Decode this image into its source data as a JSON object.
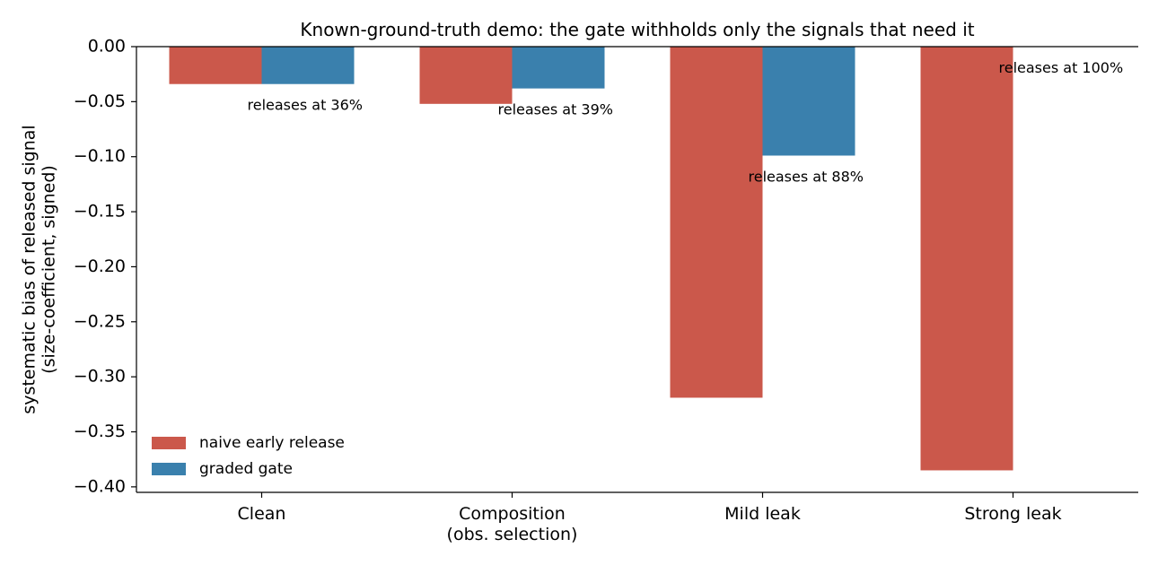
{
  "chart_data": {
    "type": "bar",
    "title": "Known-ground-truth demo: the gate withholds only the signals that need it",
    "xlabel": "",
    "ylabel_lines": [
      "systematic bias of released signal",
      "(size-coefficient, signed)"
    ],
    "categories": [
      [
        "Clean"
      ],
      [
        "Composition",
        "(obs. selection)"
      ],
      [
        "Mild leak"
      ],
      [
        "Strong leak"
      ]
    ],
    "series": [
      {
        "name": "naive early release",
        "color": "#cb584b",
        "values": [
          -0.034,
          -0.052,
          -0.319,
          -0.385
        ]
      },
      {
        "name": "graded gate",
        "color": "#3a80ad",
        "values": [
          -0.034,
          -0.038,
          -0.099,
          null
        ]
      }
    ],
    "annotations": [
      "releases at 36%",
      "releases at 39%",
      "releases at 88%",
      "releases at 100%"
    ],
    "annotation_color": "#2a75a8",
    "ylim": [
      -0.405,
      0.0
    ],
    "yticks": [
      0.0,
      -0.05,
      -0.1,
      -0.15,
      -0.2,
      -0.25,
      -0.3,
      -0.35,
      -0.4
    ],
    "ytick_labels": [
      "0.00",
      "−0.05",
      "−0.10",
      "−0.15",
      "−0.20",
      "−0.25",
      "−0.30",
      "−0.35",
      "−0.40"
    ],
    "legend_position": "lower-left",
    "grid": false
  }
}
